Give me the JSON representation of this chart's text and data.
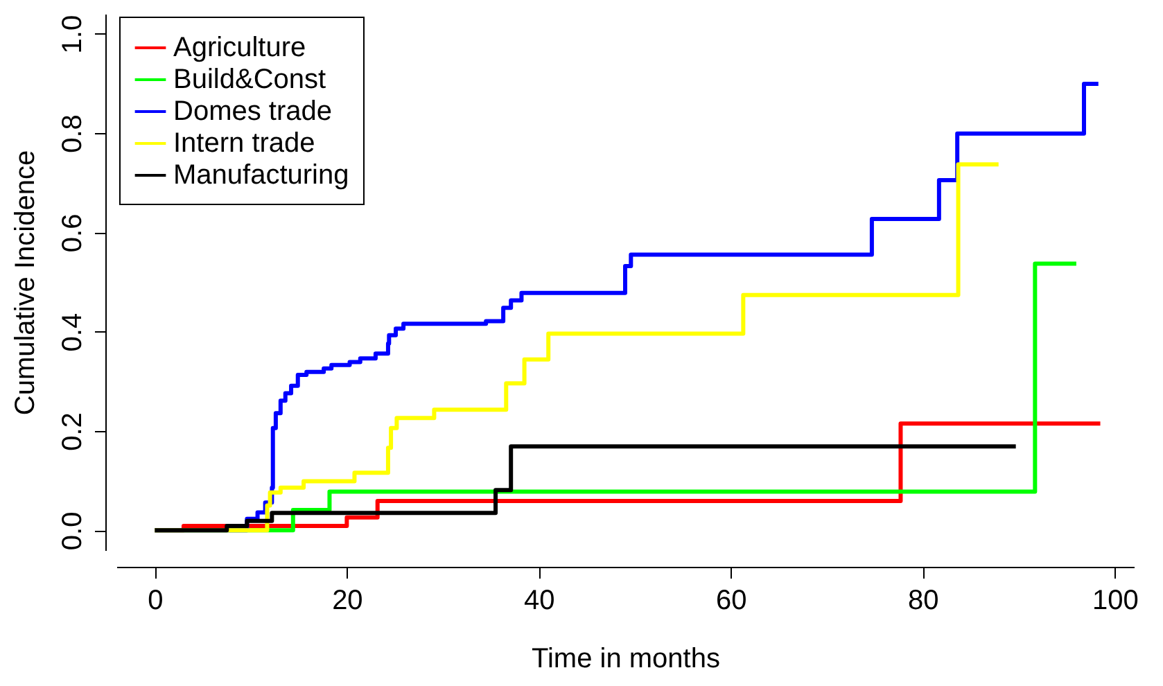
{
  "chart_data": {
    "type": "step",
    "xlabel": "Time in months",
    "ylabel": "Cumulative Incidence",
    "xlim": [
      -4,
      102
    ],
    "ylim": [
      -0.04,
      1.04
    ],
    "xticks": [
      0,
      20,
      40,
      60,
      80,
      100
    ],
    "yticks": [
      {
        "value": 0,
        "label": "0.0"
      },
      0.2,
      0.4,
      0.6,
      0.8,
      {
        "value": 1,
        "label": "1.0"
      }
    ],
    "grid": false,
    "legend": "top left",
    "marker": "none",
    "line_style": "solid",
    "series": [
      {
        "name": "Agriculture",
        "color": "#ff0000",
        "x": [
          0,
          3,
          20,
          23.2,
          77.7,
          98.5
        ],
        "values": [
          0,
          0.009,
          0.026,
          0.059,
          0.215,
          0.215
        ]
      },
      {
        "name": "Build&Const",
        "color": "#00ff00",
        "x": [
          0,
          14.4,
          18.2,
          91.7,
          96
        ],
        "values": [
          0,
          0.041,
          0.078,
          0.537,
          0.537
        ]
      },
      {
        "name": "Domes trade",
        "color": "#0000ff",
        "x": [
          0,
          9.6,
          10.7,
          11.5,
          12.2,
          12.3,
          12.6,
          13.1,
          13.6,
          14.2,
          14.9,
          15.8,
          17.6,
          18.4,
          20.3,
          21.4,
          23.0,
          24.3,
          24.4,
          25.1,
          25.9,
          34.5,
          36.3,
          37.1,
          38.2,
          49.0,
          49.6,
          74.7,
          81.7,
          83.6,
          96.8,
          98.3
        ],
        "values": [
          0,
          0.023,
          0.036,
          0.056,
          0.086,
          0.206,
          0.236,
          0.261,
          0.276,
          0.291,
          0.313,
          0.319,
          0.326,
          0.333,
          0.339,
          0.346,
          0.356,
          0.376,
          0.393,
          0.406,
          0.416,
          0.421,
          0.448,
          0.463,
          0.478,
          0.532,
          0.555,
          0.627,
          0.705,
          0.799,
          0.899,
          0.899
        ]
      },
      {
        "name": "Intern trade",
        "color": "#ffff00",
        "x": [
          0,
          11.7,
          12.0,
          13.1,
          15.5,
          20.8,
          24.3,
          24.6,
          25.2,
          29.1,
          36.6,
          38.5,
          41.0,
          61.3,
          83.7,
          87.9
        ],
        "values": [
          0,
          0.05,
          0.076,
          0.086,
          0.099,
          0.116,
          0.166,
          0.206,
          0.226,
          0.243,
          0.296,
          0.344,
          0.396,
          0.474,
          0.737,
          0.737
        ]
      },
      {
        "name": "Manufacturing",
        "color": "#000000",
        "x": [
          0,
          7.5,
          9.6,
          12.2,
          35.5,
          37.1,
          89.7
        ],
        "values": [
          0,
          0.009,
          0.019,
          0.035,
          0.081,
          0.169,
          0.169
        ]
      }
    ]
  }
}
